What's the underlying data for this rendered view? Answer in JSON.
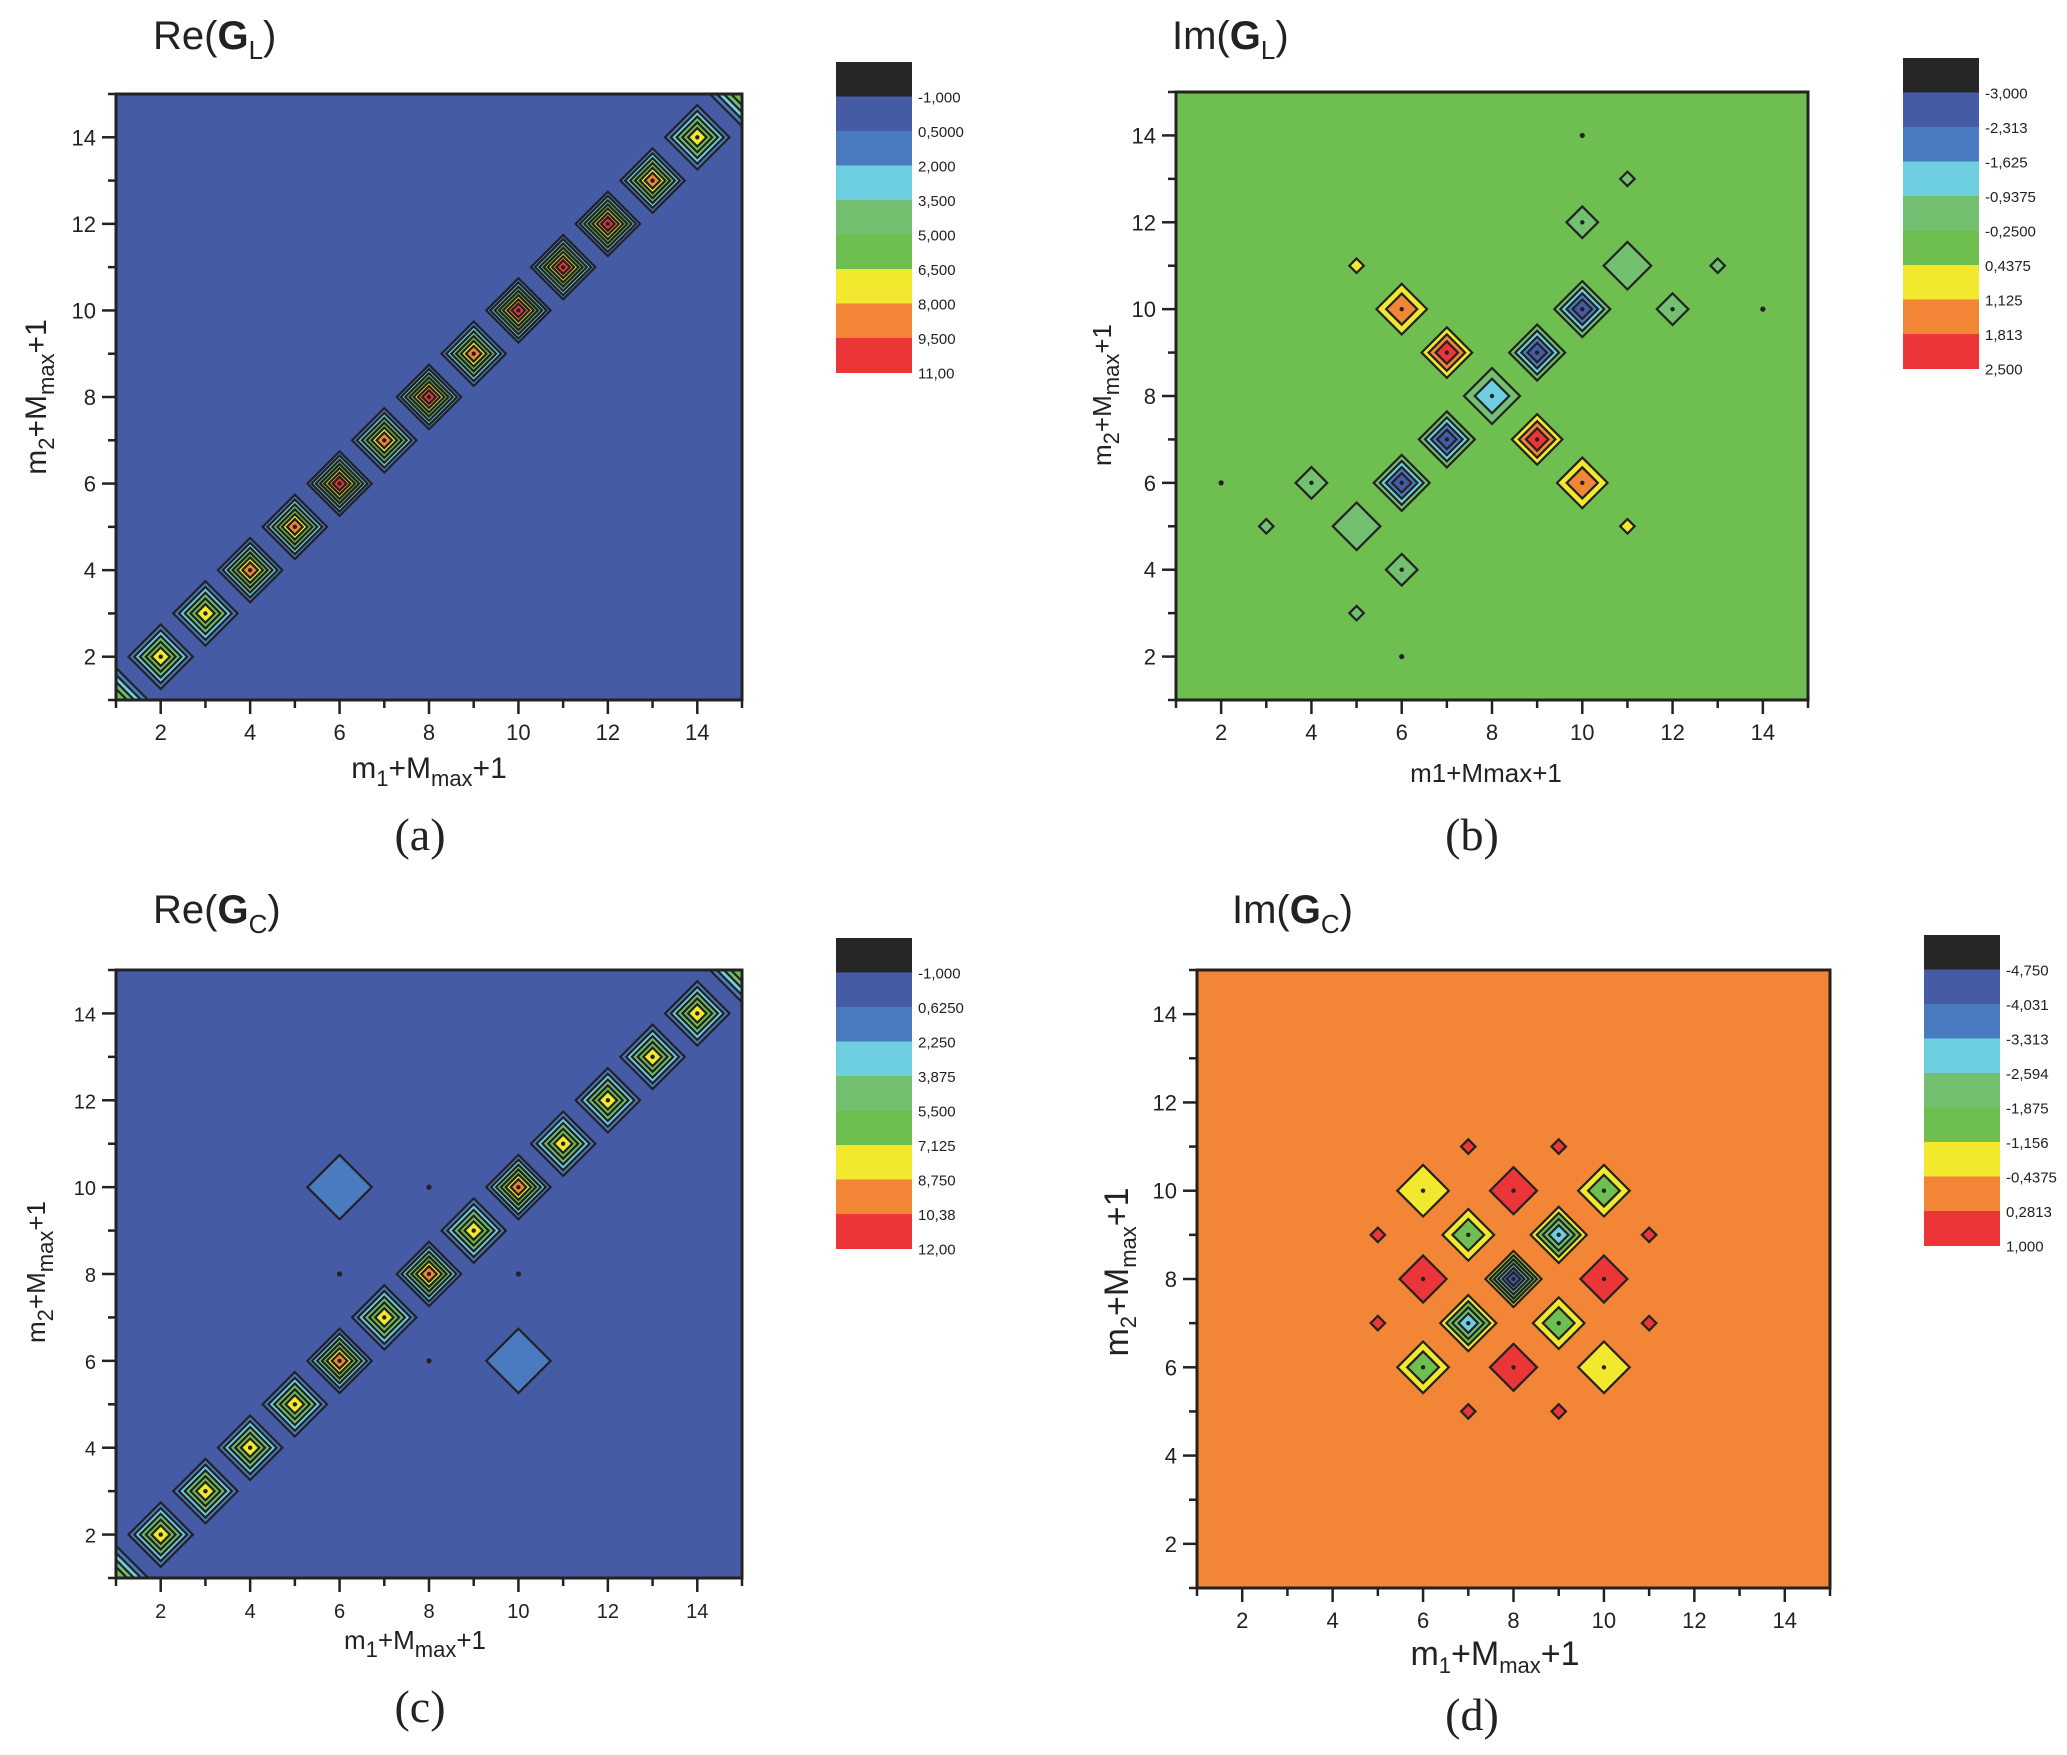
{
  "figure": {
    "panels": [
      {
        "id": "a",
        "caption": "(a)",
        "title_prefix": "Re(",
        "title_bold": "G",
        "title_sub": "L",
        "title_suffix": ")",
        "xlabel": {
          "main": "m",
          "sub1": "1",
          "mid": "+M",
          "sub2": "max",
          "end": "+1"
        },
        "ylabel": {
          "main": "m",
          "sub1": "2",
          "mid": "+M",
          "sub2": "max",
          "end": "+1"
        }
      },
      {
        "id": "b",
        "caption": "(b)",
        "title_prefix": "Im(",
        "title_bold": "G",
        "title_sub": "L",
        "title_suffix": ")",
        "xlabel": {
          "main": "m1+Mmax+1",
          "sub1": "",
          "mid": "",
          "sub2": "",
          "end": ""
        },
        "ylabel": {
          "main": "m",
          "sub1": "2",
          "mid": "+M",
          "sub2": "max",
          "end": "+1"
        }
      },
      {
        "id": "c",
        "caption": "(c)",
        "title_prefix": "Re(",
        "title_bold": "G",
        "title_sub": "C",
        "title_suffix": ")",
        "xlabel": {
          "main": "m",
          "sub1": "1",
          "mid": "+M",
          "sub2": "max",
          "end": "+1"
        },
        "ylabel": {
          "main": "m",
          "sub1": "2",
          "mid": "+M",
          "sub2": "max",
          "end": "+1"
        }
      },
      {
        "id": "d",
        "caption": "(d)",
        "title_prefix": "Im(",
        "title_bold": "G",
        "title_sub": "C",
        "title_suffix": ")",
        "xlabel": {
          "main": "m",
          "sub1": "1",
          "mid": "+M",
          "sub2": "max",
          "end": "+1"
        },
        "ylabel": {
          "main": "m",
          "sub1": "2",
          "mid": "+M",
          "sub2": "max",
          "end": "+1"
        }
      }
    ]
  },
  "chart_data": [
    {
      "type": "heatmap",
      "subtype": "contour",
      "panel": "a",
      "title": "Re(G_L)",
      "xlabel": "m1+Mmax+1",
      "ylabel": "m2+Mmax+1",
      "xlim": [
        1,
        15
      ],
      "ylim": [
        1,
        15
      ],
      "xticks": [
        "2",
        "4",
        "6",
        "8",
        "10",
        "12",
        "14"
      ],
      "yticks": [
        "2",
        "4",
        "6",
        "8",
        "10",
        "12",
        "14"
      ],
      "colorbar": {
        "levels": [
          "-1,000",
          "0,5000",
          "2,000",
          "3,500",
          "5,000",
          "6,500",
          "8,000",
          "9,500",
          "11,00"
        ],
        "colors": [
          "#262626",
          "#465ba6",
          "#4a7bc0",
          "#6ecfe0",
          "#72c070",
          "#6ebf4f",
          "#f2e92f",
          "#f28536",
          "#ec3539"
        ]
      },
      "background_level": 1,
      "features": [
        {
          "x": 1,
          "y": 1,
          "peak": 5
        },
        {
          "x": 2,
          "y": 2,
          "peak": 6
        },
        {
          "x": 3,
          "y": 3,
          "peak": 6
        },
        {
          "x": 4,
          "y": 4,
          "peak": 7
        },
        {
          "x": 5,
          "y": 5,
          "peak": 7
        },
        {
          "x": 6,
          "y": 6,
          "peak": 8
        },
        {
          "x": 7,
          "y": 7,
          "peak": 7
        },
        {
          "x": 8,
          "y": 8,
          "peak": 8
        },
        {
          "x": 9,
          "y": 9,
          "peak": 7
        },
        {
          "x": 10,
          "y": 10,
          "peak": 8
        },
        {
          "x": 11,
          "y": 11,
          "peak": 8
        },
        {
          "x": 12,
          "y": 12,
          "peak": 8
        },
        {
          "x": 13,
          "y": 13,
          "peak": 7
        },
        {
          "x": 14,
          "y": 14,
          "peak": 6
        },
        {
          "x": 15,
          "y": 15,
          "peak": 5
        }
      ]
    },
    {
      "type": "heatmap",
      "subtype": "contour",
      "panel": "b",
      "title": "Im(G_L)",
      "xlabel": "m1+Mmax+1",
      "ylabel": "m2+Mmax+1",
      "xlim": [
        1,
        15
      ],
      "ylim": [
        1,
        15
      ],
      "xticks": [
        "2",
        "4",
        "6",
        "8",
        "10",
        "12",
        "14"
      ],
      "yticks": [
        "2",
        "4",
        "6",
        "8",
        "10",
        "12",
        "14"
      ],
      "colorbar": {
        "levels": [
          "-3,000",
          "-2,313",
          "-1,625",
          "-0,9375",
          "-0,2500",
          "0,4375",
          "1,125",
          "1,813",
          "2,500"
        ],
        "colors": [
          "#262626",
          "#465ba6",
          "#4a7bc0",
          "#6ecfe0",
          "#72c070",
          "#6ebf4f",
          "#f2e92f",
          "#f28536",
          "#ec3539"
        ]
      },
      "background_level": 5,
      "features": [
        {
          "x": 6,
          "y": 6,
          "peak": 1,
          "dir": -1
        },
        {
          "x": 7,
          "y": 7,
          "peak": 1,
          "dir": -1
        },
        {
          "x": 8,
          "y": 8,
          "peak": 3,
          "dir": -1
        },
        {
          "x": 9,
          "y": 9,
          "peak": 1,
          "dir": -1
        },
        {
          "x": 10,
          "y": 10,
          "peak": 1,
          "dir": -1
        },
        {
          "x": 6,
          "y": 10,
          "peak": 7,
          "dir": 1
        },
        {
          "x": 7,
          "y": 9,
          "peak": 8,
          "dir": 1
        },
        {
          "x": 9,
          "y": 7,
          "peak": 8,
          "dir": 1
        },
        {
          "x": 10,
          "y": 6,
          "peak": 7,
          "dir": 1
        },
        {
          "x": 5,
          "y": 11,
          "peak": 6,
          "dir": 1,
          "small": true
        },
        {
          "x": 11,
          "y": 5,
          "peak": 6,
          "dir": 1,
          "small": true
        },
        {
          "x": 4,
          "y": 6,
          "peak": 4,
          "dir": -1
        },
        {
          "x": 5,
          "y": 5,
          "peak": 4,
          "dir": -1,
          "big": true
        },
        {
          "x": 6,
          "y": 4,
          "peak": 4,
          "dir": -1
        },
        {
          "x": 3,
          "y": 5,
          "peak": 4,
          "dir": -1,
          "small": true
        },
        {
          "x": 5,
          "y": 3,
          "peak": 4,
          "dir": -1,
          "small": true
        },
        {
          "x": 10,
          "y": 12,
          "peak": 4,
          "dir": -1
        },
        {
          "x": 11,
          "y": 11,
          "peak": 4,
          "dir": -1,
          "big": true
        },
        {
          "x": 12,
          "y": 10,
          "peak": 4,
          "dir": -1
        },
        {
          "x": 11,
          "y": 13,
          "peak": 4,
          "dir": -1,
          "small": true
        },
        {
          "x": 13,
          "y": 11,
          "peak": 4,
          "dir": -1,
          "small": true
        },
        {
          "x": 2,
          "y": 6,
          "dot": true
        },
        {
          "x": 6,
          "y": 2,
          "dot": true
        },
        {
          "x": 10,
          "y": 14,
          "dot": true
        },
        {
          "x": 14,
          "y": 10,
          "dot": true
        }
      ]
    },
    {
      "type": "heatmap",
      "subtype": "contour",
      "panel": "c",
      "title": "Re(G_C)",
      "xlabel": "m1+Mmax+1",
      "ylabel": "m2+Mmax+1",
      "xlim": [
        1,
        15
      ],
      "ylim": [
        1,
        15
      ],
      "xticks": [
        "2",
        "4",
        "6",
        "8",
        "10",
        "12",
        "14"
      ],
      "yticks": [
        "2",
        "4",
        "6",
        "8",
        "10",
        "12",
        "14"
      ],
      "colorbar": {
        "levels": [
          "-1,000",
          "0,6250",
          "2,250",
          "3,875",
          "5,500",
          "7,125",
          "8,750",
          "10,38",
          "12,00"
        ],
        "colors": [
          "#262626",
          "#465ba6",
          "#4a7bc0",
          "#6ecfe0",
          "#72c070",
          "#6ebf4f",
          "#f2e92f",
          "#f28536",
          "#ec3539"
        ]
      },
      "background_level": 1,
      "features": [
        {
          "x": 1,
          "y": 1,
          "peak": 5
        },
        {
          "x": 2,
          "y": 2,
          "peak": 6
        },
        {
          "x": 3,
          "y": 3,
          "peak": 6
        },
        {
          "x": 4,
          "y": 4,
          "peak": 6
        },
        {
          "x": 5,
          "y": 5,
          "peak": 6
        },
        {
          "x": 6,
          "y": 6,
          "peak": 7
        },
        {
          "x": 7,
          "y": 7,
          "peak": 6
        },
        {
          "x": 8,
          "y": 8,
          "peak": 7
        },
        {
          "x": 9,
          "y": 9,
          "peak": 6
        },
        {
          "x": 10,
          "y": 10,
          "peak": 7
        },
        {
          "x": 11,
          "y": 11,
          "peak": 6
        },
        {
          "x": 12,
          "y": 12,
          "peak": 6
        },
        {
          "x": 13,
          "y": 13,
          "peak": 6
        },
        {
          "x": 14,
          "y": 14,
          "peak": 6
        },
        {
          "x": 15,
          "y": 15,
          "peak": 5
        },
        {
          "x": 6,
          "y": 10,
          "peak": 2,
          "small": true
        },
        {
          "x": 10,
          "y": 6,
          "peak": 2,
          "small": true
        },
        {
          "x": 8,
          "y": 10,
          "dot": true
        },
        {
          "x": 6,
          "y": 8,
          "dot": true
        },
        {
          "x": 10,
          "y": 8,
          "dot": true
        },
        {
          "x": 8,
          "y": 6,
          "dot": true
        }
      ]
    },
    {
      "type": "heatmap",
      "subtype": "contour",
      "panel": "d",
      "title": "Im(G_C)",
      "xlabel": "m1+Mmax+1",
      "ylabel": "m2+Mmax+1",
      "xlim": [
        1,
        15
      ],
      "ylim": [
        1,
        15
      ],
      "xticks": [
        "2",
        "4",
        "6",
        "8",
        "10",
        "12",
        "14"
      ],
      "yticks": [
        "2",
        "4",
        "6",
        "8",
        "10",
        "12",
        "14"
      ],
      "colorbar": {
        "levels": [
          "-4,750",
          "-4,031",
          "-3,313",
          "-2,594",
          "-1,875",
          "-1,156",
          "-0,4375",
          "0,2813",
          "1,000"
        ],
        "colors": [
          "#262626",
          "#465ba6",
          "#4a7bc0",
          "#6ecfe0",
          "#72c070",
          "#6ebf4f",
          "#f2e92f",
          "#f28536",
          "#ec3539"
        ]
      },
      "background_level": 7,
      "features": [
        {
          "x": 8,
          "y": 8,
          "peak": 1,
          "dir": -1
        },
        {
          "x": 7,
          "y": 7,
          "peak": 3,
          "dir": -1
        },
        {
          "x": 9,
          "y": 9,
          "peak": 3,
          "dir": -1
        },
        {
          "x": 7,
          "y": 9,
          "peak": 5,
          "dir": -1
        },
        {
          "x": 9,
          "y": 7,
          "peak": 5,
          "dir": -1
        },
        {
          "x": 6,
          "y": 6,
          "peak": 5,
          "dir": -1
        },
        {
          "x": 10,
          "y": 10,
          "peak": 5,
          "dir": -1
        },
        {
          "x": 6,
          "y": 10,
          "peak": 6,
          "dir": -1
        },
        {
          "x": 10,
          "y": 6,
          "peak": 6,
          "dir": -1
        },
        {
          "x": 8,
          "y": 10,
          "peak": 8,
          "dir": 1
        },
        {
          "x": 8,
          "y": 6,
          "peak": 8,
          "dir": 1
        },
        {
          "x": 6,
          "y": 8,
          "peak": 8,
          "dir": 1
        },
        {
          "x": 10,
          "y": 8,
          "peak": 8,
          "dir": 1
        },
        {
          "x": 7,
          "y": 11,
          "peak": 8,
          "dir": 1,
          "small": true
        },
        {
          "x": 9,
          "y": 11,
          "peak": 8,
          "dir": 1,
          "small": true
        },
        {
          "x": 7,
          "y": 5,
          "peak": 8,
          "dir": 1,
          "small": true
        },
        {
          "x": 9,
          "y": 5,
          "peak": 8,
          "dir": 1,
          "small": true
        },
        {
          "x": 5,
          "y": 9,
          "peak": 8,
          "dir": 1,
          "small": true
        },
        {
          "x": 5,
          "y": 7,
          "peak": 8,
          "dir": 1,
          "small": true
        },
        {
          "x": 11,
          "y": 9,
          "peak": 8,
          "dir": 1,
          "small": true
        },
        {
          "x": 11,
          "y": 7,
          "peak": 8,
          "dir": 1,
          "small": true
        }
      ]
    }
  ]
}
